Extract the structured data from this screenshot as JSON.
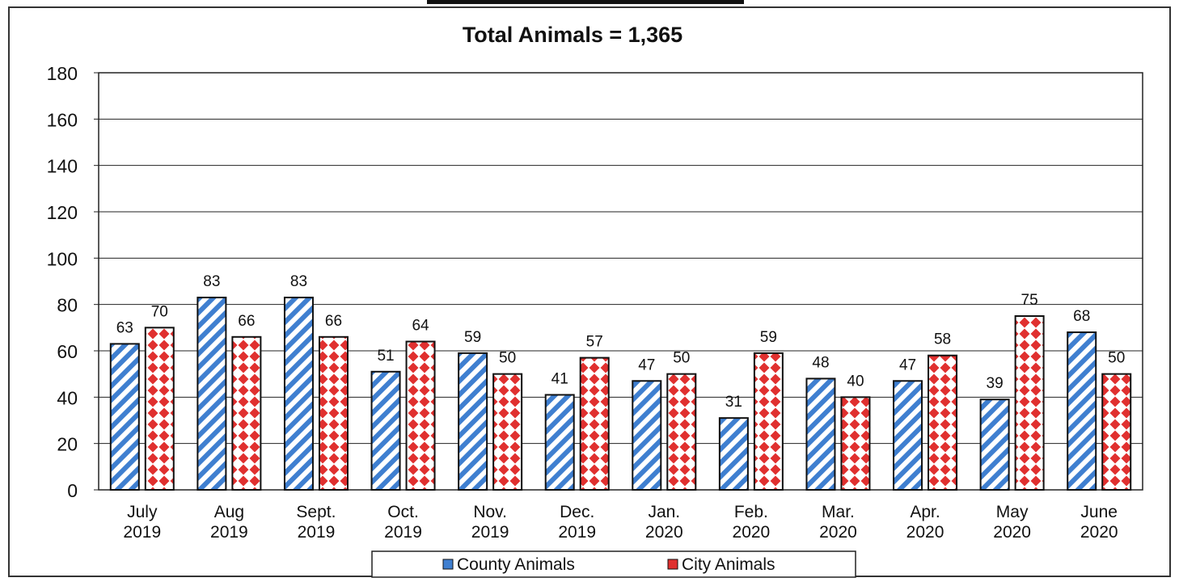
{
  "chart_data": {
    "type": "bar",
    "title": "Total Animals = 1,365",
    "xlabel": "",
    "ylabel": "",
    "ylim": [
      0,
      180
    ],
    "yticks": [
      "0",
      "20",
      "40",
      "60",
      "80",
      "100",
      "120",
      "140",
      "160",
      "180"
    ],
    "grid": true,
    "legend_position": "bottom",
    "categories": [
      [
        "July",
        "2019"
      ],
      [
        "Aug",
        "2019"
      ],
      [
        "Sept.",
        "2019"
      ],
      [
        "Oct.",
        "2019"
      ],
      [
        "Nov.",
        "2019"
      ],
      [
        "Dec.",
        "2019"
      ],
      [
        "Jan.",
        "2020"
      ],
      [
        "Feb.",
        "2020"
      ],
      [
        "Mar.",
        "2020"
      ],
      [
        "Apr.",
        "2020"
      ],
      [
        "May",
        "2020"
      ],
      [
        "June",
        "2020"
      ]
    ],
    "series": [
      {
        "name": "County Animals",
        "color": "#3f7fd0",
        "pattern": "diagonal-stripes",
        "values": [
          63,
          83,
          83,
          51,
          59,
          41,
          47,
          31,
          48,
          47,
          39,
          68
        ]
      },
      {
        "name": "City Animals",
        "color": "#e0302f",
        "pattern": "diamond-checks",
        "values": [
          70,
          66,
          66,
          64,
          50,
          57,
          50,
          59,
          40,
          58,
          75,
          50
        ]
      }
    ]
  }
}
